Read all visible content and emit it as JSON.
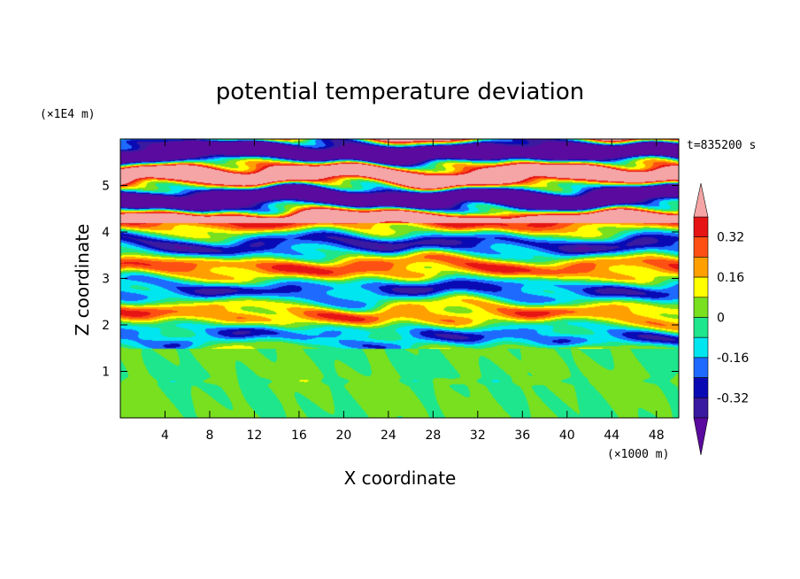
{
  "chart_data": {
    "type": "heatmap",
    "title": "potential temperature deviation",
    "xlabel": "X coordinate",
    "ylabel": "Z coordinate",
    "x_unit": "(×1000 m)",
    "y_unit": "(×1E4 m)",
    "time_label": "t=835200 s",
    "xlim": [
      0,
      50
    ],
    "ylim": [
      0,
      6
    ],
    "x_ticks": [
      4,
      8,
      12,
      16,
      20,
      24,
      28,
      32,
      36,
      40,
      44,
      48
    ],
    "y_ticks": [
      1,
      2,
      3,
      4,
      5
    ],
    "colorbar": {
      "levels": [
        -0.4,
        -0.32,
        -0.24,
        -0.16,
        -0.08,
        0,
        0.08,
        0.16,
        0.24,
        0.32,
        0.4
      ],
      "labels": [
        "0.32",
        "0.16",
        "0",
        "-0.16",
        "-0.32"
      ],
      "label_values": [
        0.32,
        0.16,
        0,
        -0.16,
        -0.32
      ],
      "colors": [
        "#5a0a9e",
        "#3a1aa0",
        "#0a0ab4",
        "#1e6aff",
        "#00e6f0",
        "#1ee68c",
        "#78e01e",
        "#ffff00",
        "#ffa000",
        "#ff5014",
        "#e61414",
        "#f5a5a5"
      ]
    }
  }
}
